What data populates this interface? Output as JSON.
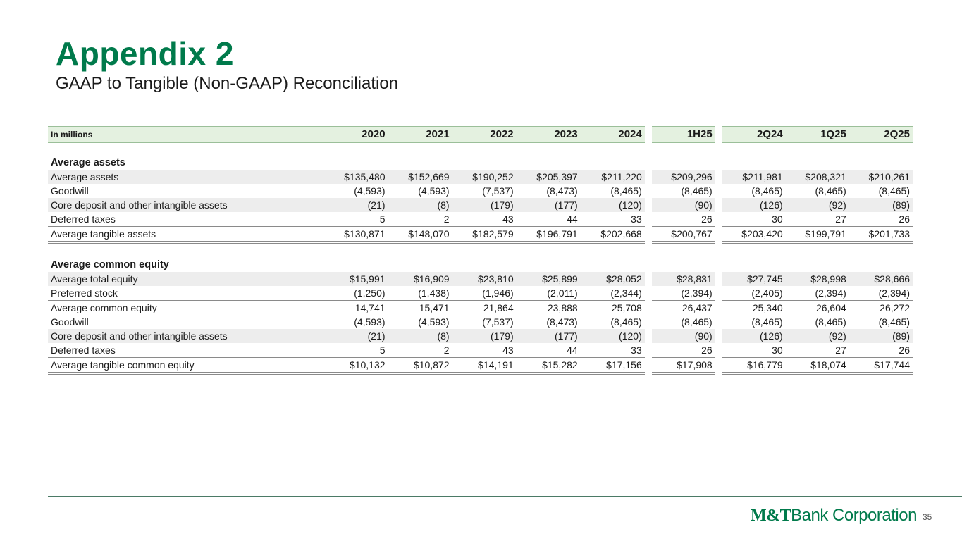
{
  "title": "Appendix 2",
  "subtitle": "GAAP to Tangible (Non-GAAP) Reconciliation",
  "table": {
    "unit_label": "In millions",
    "columns": [
      "2020",
      "2021",
      "2022",
      "2023",
      "2024",
      "1H25",
      "2Q24",
      "1Q25",
      "2Q25"
    ],
    "sections": [
      {
        "heading": "Average assets",
        "rows": [
          {
            "label": "Average assets",
            "values": [
              "$135,480",
              "$152,669",
              "$190,252",
              "$205,397",
              "$211,220",
              "$209,296",
              "$211,981",
              "$208,321",
              "$210,261"
            ]
          },
          {
            "label": "Goodwill",
            "values": [
              "(4,593)",
              "(4,593)",
              "(7,537)",
              "(8,473)",
              "(8,465)",
              "(8,465)",
              "(8,465)",
              "(8,465)",
              "(8,465)"
            ]
          },
          {
            "label": "Core deposit and other intangible assets",
            "values": [
              "(21)",
              "(8)",
              "(179)",
              "(177)",
              "(120)",
              "(90)",
              "(126)",
              "(92)",
              "(89)"
            ]
          },
          {
            "label": "Deferred taxes",
            "values": [
              "5",
              "2",
              "43",
              "44",
              "33",
              "26",
              "30",
              "27",
              "26"
            ]
          },
          {
            "label": "Average tangible assets",
            "values": [
              "$130,871",
              "$148,070",
              "$182,579",
              "$196,791",
              "$202,668",
              "$200,767",
              "$203,420",
              "$199,791",
              "$201,733"
            ]
          }
        ]
      },
      {
        "heading": "Average common equity",
        "rows": [
          {
            "label": "Average total equity",
            "values": [
              "$15,991",
              "$16,909",
              "$23,810",
              "$25,899",
              "$28,052",
              "$28,831",
              "$27,745",
              "$28,998",
              "$28,666"
            ]
          },
          {
            "label": "Preferred stock",
            "values": [
              "(1,250)",
              "(1,438)",
              "(1,946)",
              "(2,011)",
              "(2,344)",
              "(2,394)",
              "(2,405)",
              "(2,394)",
              "(2,394)"
            ]
          },
          {
            "label": "Average common equity",
            "values": [
              "14,741",
              "15,471",
              "21,864",
              "23,888",
              "25,708",
              "26,437",
              "25,340",
              "26,604",
              "26,272"
            ]
          },
          {
            "label": "Goodwill",
            "values": [
              "(4,593)",
              "(4,593)",
              "(7,537)",
              "(8,473)",
              "(8,465)",
              "(8,465)",
              "(8,465)",
              "(8,465)",
              "(8,465)"
            ]
          },
          {
            "label": "Core deposit and other intangible assets",
            "values": [
              "(21)",
              "(8)",
              "(179)",
              "(177)",
              "(120)",
              "(90)",
              "(126)",
              "(92)",
              "(89)"
            ]
          },
          {
            "label": "Deferred taxes",
            "values": [
              "5",
              "2",
              "43",
              "44",
              "33",
              "26",
              "30",
              "27",
              "26"
            ]
          },
          {
            "label": "Average tangible common equity",
            "values": [
              "$10,132",
              "$10,872",
              "$14,191",
              "$15,282",
              "$17,156",
              "$17,908",
              "$16,779",
              "$18,074",
              "$17,744"
            ]
          }
        ]
      }
    ]
  },
  "footer": {
    "logo_mt": "M&T",
    "logo_rest": "Bank Corporation",
    "page_number": "35"
  },
  "colors": {
    "brand_green": "#007a4b",
    "header_fill": "#e4f1e0",
    "row_shade": "#ededed"
  }
}
